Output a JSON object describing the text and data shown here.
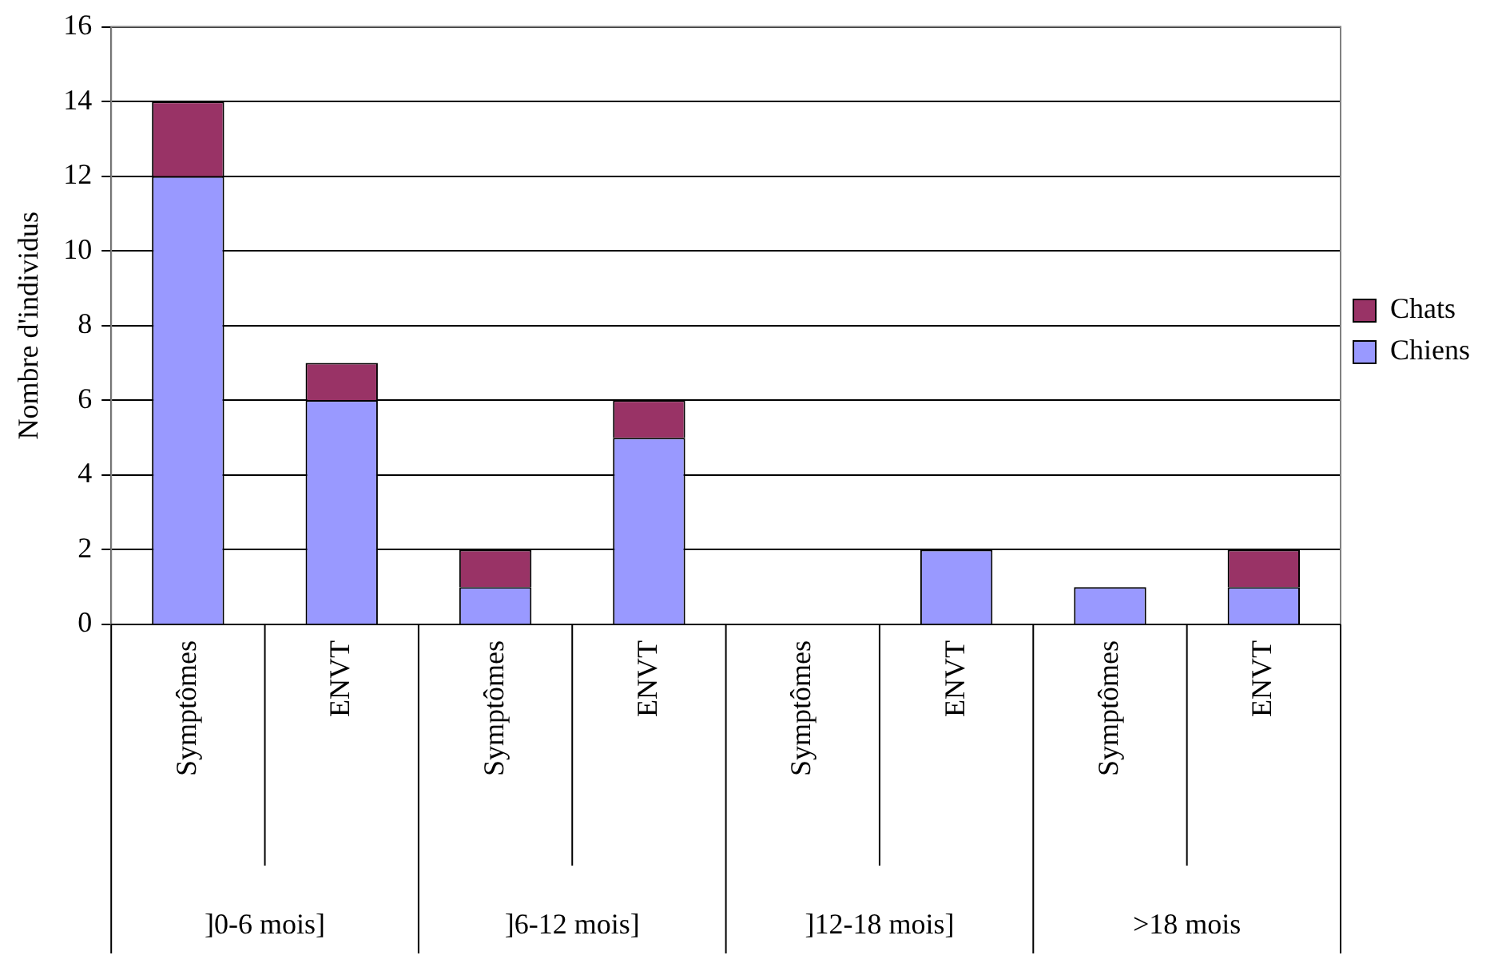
{
  "chart_data": {
    "type": "bar",
    "stacked": true,
    "ylabel": "Nombre d'individus",
    "categories": [
      "Symptômes",
      "ENVT",
      "Symptômes",
      "ENVT",
      "Symptômes",
      "ENVT",
      "Symptômes",
      "ENVT"
    ],
    "annotations": [
      "]0-6 mois]",
      "]6-12 mois]",
      "]12-18 mois]",
      ">18 mois"
    ],
    "series": [
      {
        "name": "Chiens",
        "color": "#9999ff",
        "values": [
          12,
          6,
          1,
          5,
          0,
          2,
          1,
          1
        ]
      },
      {
        "name": "Chats",
        "color": "#993366",
        "values": [
          2,
          1,
          1,
          1,
          0,
          0,
          0,
          1
        ]
      }
    ],
    "ylim": [
      0,
      16
    ],
    "yticks": [
      0,
      2,
      4,
      6,
      8,
      10,
      12,
      14,
      16
    ],
    "grid": "y",
    "legend": "right"
  }
}
